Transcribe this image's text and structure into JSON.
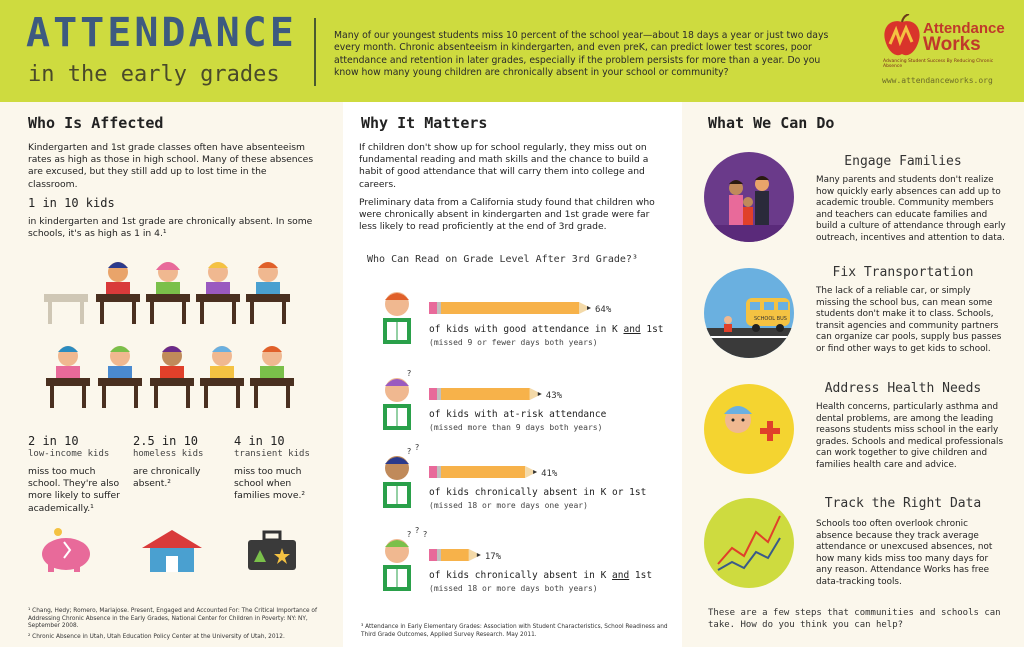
{
  "header": {
    "title": "ATTENDANCE",
    "subtitle": "in the early grades",
    "intro": "Many of our youngest students miss 10 percent of the school year—about 18 days a year or just two days every month.  Chronic absenteeism in kindergarten, and even preK, can predict lower test scores, poor attendance and retention in later grades, especially if the problem persists for more than a year. Do you know how many young children are chronically absent in your school or community?",
    "logo_word1": "Attendance",
    "logo_word2": "Works",
    "logo_tagline": "Advancing Student Success By Reducing Chronic Absence",
    "logo_url": "www.attendanceworks.org"
  },
  "who": {
    "title": "Who Is Affected",
    "intro": "Kindergarten and 1st grade classes often have absenteeism rates as high as those in high school. Many of these absences are excused, but they still add up to lost time in the classroom.",
    "stat_main": "1 in 10 kids",
    "stat_main_text": "in kindergarten and 1st grade are chronically absent. In some schools, it's as high as 1 in 4.¹",
    "stats": [
      {
        "head": "2 in 10",
        "sub": "low-income kids",
        "text": "miss too much school. They're also more likely to suffer academically.¹"
      },
      {
        "head": "2.5 in 10",
        "sub": "homeless kids",
        "text": "are chronically absent.²"
      },
      {
        "head": "4 in 10",
        "sub": "transient kids",
        "text": "miss too much school when families move.²"
      }
    ],
    "footnote1": "¹ Chang, Hedy; Romero, Mariajose. Present, Engaged and Accounted For: The Critical Importance of Addressing Chronic Absence in the Early Grades, National Center for Children in Poverty: NY: NY, September 2008.",
    "footnote2": "² Chronic Absence in Utah, Utah Education Policy Center at the University of Utah, 2012."
  },
  "why": {
    "title": "Why It Matters",
    "para1": "If children don't show up for school regularly, they miss out on fundamental reading and math skills and the chance to build a habit of good attendance that will carry them into college and careers.",
    "para2": "Preliminary data from a California study found that children who were chronically absent in kindergarten and 1st grade were far less likely to read proficiently at the end of 3rd grade.",
    "footnote": "³ Attendance in Early Elementary Grades: Association with Student Characteristics, School Readiness and Third Grade Outcomes, Applied Survey Research. May 2011."
  },
  "chart_data": {
    "type": "bar",
    "title": "Who Can Read on Grade Level After 3rd Grade?³",
    "categories": [
      "of kids with good attendance in K and 1st",
      "of kids with at-risk attendance",
      "of kids chronically absent in K or 1st",
      "of kids chronically absent in K and 1st"
    ],
    "notes": [
      "(missed 9 or fewer days both years)",
      "(missed more than 9 days both years)",
      "(missed 18 or more days one year)",
      "(missed 18 or more days both years)"
    ],
    "values": [
      64,
      43,
      41,
      17
    ],
    "value_labels": [
      "64%",
      "43%",
      "41%",
      "17%"
    ],
    "xlim": [
      0,
      64
    ]
  },
  "what": {
    "title": "What We Can Do",
    "actions": [
      {
        "title": "Engage Families",
        "text": "Many parents and students don't realize how quickly early absences can add up to academic trouble. Community members and teachers can educate families and build a culture of attendance through early outreach, incentives and attention to data."
      },
      {
        "title": "Fix Transportation",
        "text": "The lack of a reliable car, or simply missing the school bus, can mean some students don't make it to class. Schools, transit agencies and community partners can organize car pools, supply bus passes or find other ways to get kids to school."
      },
      {
        "title": "Address Health Needs",
        "text": "Health concerns, particularly asthma and dental problems, are among the leading reasons students miss school in the early grades. Schools and medical professionals can work together to give children and families health care and advice."
      },
      {
        "title": "Track the Right Data",
        "text": "Schools too often overlook chronic absence because they track average attendance or unexcused absences, not how many kids miss too many days for any reason. Attendance Works has free data-tracking tools."
      }
    ],
    "bus_label": "SCHOOL BUS",
    "closing": "These are a few steps that communities and schools can take. How do you think you can help?"
  },
  "colors": {
    "header_bg": "#cedb3f",
    "title_blue": "#3d5a80",
    "pencil": "#f7b24a",
    "logo_red": "#c0392b"
  }
}
